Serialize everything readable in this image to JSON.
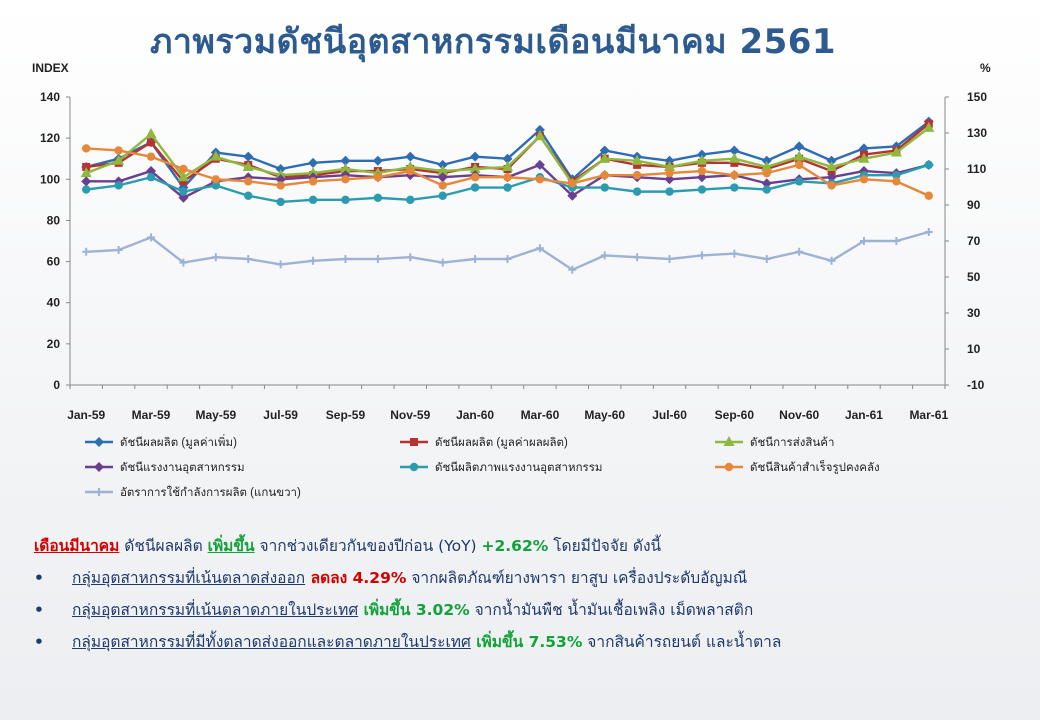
{
  "title": "ภาพรวมดัชนีอุตสาหกรรมเดือนมีนาคม 2561",
  "chart_data": {
    "type": "line",
    "left_axis_label": "INDEX",
    "right_axis_label": "%",
    "left_ylim": [
      0,
      140
    ],
    "left_ticks": [
      0,
      20,
      40,
      60,
      80,
      100,
      120,
      140
    ],
    "right_ylim": [
      -10,
      150
    ],
    "right_ticks": [
      -10,
      10,
      30,
      50,
      70,
      90,
      110,
      130,
      150
    ],
    "x": [
      "Jan-59",
      "Feb-59",
      "Mar-59",
      "Apr-59",
      "May-59",
      "Jun-59",
      "Jul-59",
      "Aug-59",
      "Sep-59",
      "Oct-59",
      "Nov-59",
      "Dec-59",
      "Jan-60",
      "Feb-60",
      "Mar-60",
      "Apr-60",
      "May-60",
      "Jun-60",
      "Jul-60",
      "Aug-60",
      "Sep-60",
      "Oct-60",
      "Nov-60",
      "Dec-60",
      "Jan-61",
      "Feb-61",
      "Mar-61"
    ],
    "x_tick_labels": [
      "Jan-59",
      "Mar-59",
      "May-59",
      "Jul-59",
      "Sep-59",
      "Nov-59",
      "Jan-60",
      "Mar-60",
      "May-60",
      "Jul-60",
      "Sep-60",
      "Nov-60",
      "Jan-61",
      "Mar-61"
    ],
    "grid": false,
    "legend_position": "bottom",
    "series": [
      {
        "name": "ดัชนีผลผลิต (มูลค่าเพิ่ม)",
        "color": "#2e6db4",
        "marker": "diamond",
        "axis": "left",
        "values": [
          106,
          110,
          118,
          96,
          113,
          111,
          105,
          108,
          109,
          109,
          111,
          107,
          111,
          110,
          124,
          100,
          114,
          111,
          109,
          112,
          114,
          109,
          116,
          109,
          115,
          116,
          128
        ]
      },
      {
        "name": "ดัชนีผลผลิต (มูลค่าผลผลิต)",
        "color": "#b83232",
        "marker": "square",
        "axis": "left",
        "values": [
          106,
          108,
          118,
          99,
          110,
          107,
          101,
          102,
          104,
          104,
          105,
          103,
          106,
          105,
          121,
          99,
          110,
          107,
          106,
          108,
          108,
          105,
          110,
          104,
          112,
          114,
          127
        ]
      },
      {
        "name": "ดัชนีการส่งสินค้า",
        "color": "#8fb83e",
        "marker": "triangle",
        "axis": "left",
        "values": [
          103,
          109,
          122,
          101,
          111,
          106,
          102,
          103,
          105,
          103,
          106,
          104,
          105,
          106,
          121,
          98,
          110,
          109,
          106,
          109,
          110,
          106,
          111,
          106,
          110,
          113,
          125
        ]
      },
      {
        "name": "ดัชนีแรงงานอุตสาหกรรม",
        "color": "#6b3f8f",
        "marker": "diamond",
        "axis": "left",
        "values": [
          99,
          99,
          104,
          91,
          99,
          101,
          100,
          101,
          102,
          101,
          102,
          101,
          102,
          101,
          107,
          92,
          102,
          101,
          100,
          101,
          102,
          98,
          100,
          101,
          104,
          103,
          107
        ]
      },
      {
        "name": "ดัชนีผลิตภาพแรงงานอุตสาหกรรม",
        "color": "#2b9bb0",
        "marker": "circle",
        "axis": "left",
        "values": [
          95,
          97,
          101,
          94,
          97,
          92,
          89,
          90,
          90,
          91,
          90,
          92,
          96,
          96,
          101,
          96,
          96,
          94,
          94,
          95,
          96,
          95,
          99,
          98,
          102,
          102,
          107
        ]
      },
      {
        "name": "ดัชนีสินค้าสำเร็จรูปคงคลัง",
        "color": "#e5883a",
        "marker": "circle",
        "axis": "left",
        "values": [
          115,
          114,
          111,
          105,
          100,
          99,
          97,
          99,
          100,
          101,
          104,
          97,
          101,
          101,
          100,
          98,
          102,
          102,
          103,
          104,
          102,
          103,
          107,
          97,
          100,
          99,
          92
        ]
      },
      {
        "name": "อัตราการใช้กำลังการผลิต (แกนขวา)",
        "color": "#9db3d6",
        "marker": "cross",
        "axis": "right",
        "values": [
          64,
          65,
          72,
          58,
          61,
          60,
          57,
          59,
          60,
          60,
          61,
          58,
          60,
          60,
          66,
          54,
          62,
          61,
          60,
          62,
          63,
          60,
          64,
          59,
          70,
          70,
          75
        ]
      }
    ]
  },
  "summary": {
    "line1": {
      "month": "เดือนมีนาคม",
      "text1": " ดัชนีผลผลิต ",
      "increase": "เพิ่มขึ้น",
      "text2": " จากช่วงเดียวกันของปีก่อน (YoY) ",
      "value": "+2.62%",
      "text3": " โดยมีปัจจัย ดังนี้"
    },
    "bullets": [
      {
        "bullet": "•",
        "group": "กลุ่มอุตสาหกรรมที่เน้นตลาดส่งออก",
        "change": " ลดลง 4.29%",
        "color": "red",
        "detail": " จากผลิตภัณฑ์ยางพารา ยาสูบ เครื่องประดับอัญมณี"
      },
      {
        "bullet": "•",
        "group": "กลุ่มอุตสาหกรรมที่เน้นตลาดภายในประเทศ",
        "change": " เพิ่มขึ้น 3.02%",
        "color": "green",
        "detail": " จากน้ำมันพืช น้ำมันเชื้อเพลิง เม็ดพลาสติก"
      },
      {
        "bullet": "•",
        "group": "กลุ่มอุตสาหกรรมที่มีทั้งตลาดส่งออกและตลาดภายในประเทศ",
        "change": " เพิ่มขึ้น 7.53%",
        "color": "green",
        "detail": " จากสินค้ารถยนต์ และน้ำตาล"
      }
    ]
  }
}
